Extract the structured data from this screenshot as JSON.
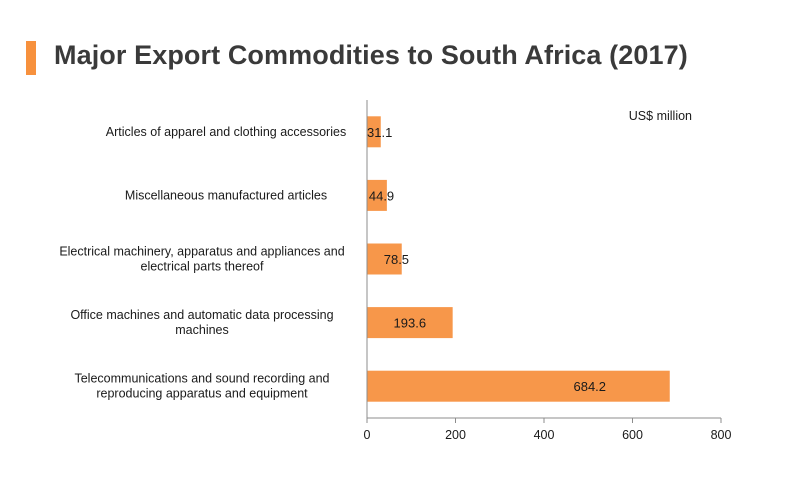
{
  "header": {
    "title": "Major Export Commodities to South Africa (2017)"
  },
  "colors": {
    "accent": "#f7913d",
    "bar": "#f7974a",
    "axis": "#8c8c8c",
    "title_text": "#3a3a3a"
  },
  "chart_data": {
    "type": "bar",
    "orientation": "horizontal",
    "title": "Major Export Commodities to South Africa (2017)",
    "unit_label": "US$ million",
    "categories": [
      [
        "Articles of apparel and clothing accessories"
      ],
      [
        "Miscellaneous manufactured articles"
      ],
      [
        "Electrical machinery, apparatus and appliances and",
        "electrical parts thereof"
      ],
      [
        "Office machines and automatic data processing",
        "machines"
      ],
      [
        "Telecommunications and sound recording and",
        "reproducing apparatus and equipment"
      ]
    ],
    "values": [
      31.1,
      44.9,
      78.5,
      193.6,
      684.2
    ],
    "value_labels": [
      "31.1",
      "44.9",
      "78.5",
      "193.6",
      "684.2"
    ],
    "xlim": [
      0,
      800
    ],
    "xticks": [
      0,
      200,
      400,
      600,
      800
    ],
    "xlabel": "",
    "ylabel": "",
    "grid": false,
    "legend": "none"
  }
}
